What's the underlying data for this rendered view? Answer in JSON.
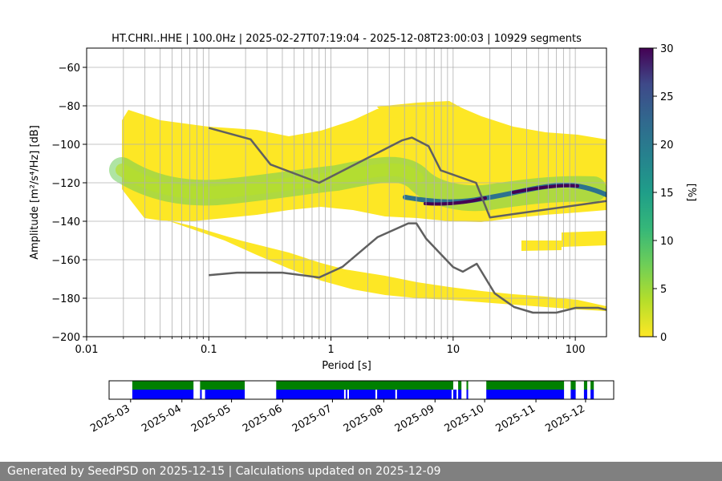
{
  "chart_data": [
    {
      "type": "heatmap",
      "title": "HT.CHRI..HHE | 100.0Hz | 2025-02-27T07:19:04 - 2025-12-08T23:00:03 | 10929 segments",
      "xlabel": "Period [s]",
      "ylabel": "Amplitude [m²/s⁴/Hz] [dB]",
      "x_scale": "log",
      "xlim": [
        0.01,
        180
      ],
      "ylim": [
        -200,
        -50
      ],
      "x_ticks": [
        0.01,
        0.1,
        1,
        10,
        100
      ],
      "x_tick_labels": [
        "0.01",
        "0.1",
        "1",
        "10",
        "100"
      ],
      "y_ticks": [
        -200,
        -180,
        -160,
        -140,
        -120,
        -100,
        -80,
        -60
      ],
      "y_tick_labels": [
        "−200",
        "−180",
        "−160",
        "−140",
        "−120",
        "−100",
        "−80",
        "−60"
      ],
      "grid": true,
      "colorbar": {
        "label": "[%]",
        "range": [
          0,
          30
        ],
        "ticks": [
          0,
          5,
          10,
          15,
          20,
          25,
          30
        ],
        "tick_labels": [
          "0",
          "5",
          "10",
          "15",
          "20",
          "25",
          "30"
        ],
        "colormap": "viridis_r"
      },
      "series": [
        {
          "name": "New High Noise Model",
          "color": "#606060",
          "points": [
            [
              0.1,
              -91.5
            ],
            [
              0.22,
              -97.4
            ],
            [
              0.32,
              -110.5
            ],
            [
              0.8,
              -120
            ],
            [
              3.8,
              -98
            ],
            [
              4.6,
              -96.5
            ],
            [
              6.3,
              -101
            ],
            [
              7.9,
              -113.5
            ],
            [
              15.4,
              -120
            ],
            [
              20,
              -138
            ],
            [
              180,
              -129.5
            ]
          ]
        },
        {
          "name": "New Low Noise Model",
          "color": "#606060",
          "points": [
            [
              0.1,
              -168
            ],
            [
              0.17,
              -166.7
            ],
            [
              0.4,
              -166.7
            ],
            [
              0.8,
              -169.2
            ],
            [
              1.24,
              -163.7
            ],
            [
              2.4,
              -148.3
            ],
            [
              4.3,
              -141.1
            ],
            [
              5,
              -141.1
            ],
            [
              6,
              -149
            ],
            [
              10,
              -163.8
            ],
            [
              12,
              -166.2
            ],
            [
              15.6,
              -162.1
            ],
            [
              21.9,
              -177.5
            ],
            [
              31.6,
              -184.6
            ],
            [
              45,
              -187.5
            ],
            [
              70,
              -187.5
            ],
            [
              101,
              -185
            ],
            [
              154,
              -185
            ],
            [
              180,
              -186
            ]
          ]
        }
      ],
      "density_ridges": [
        {
          "name": "main noise band",
          "points": [
            [
              0.02,
              -112
            ],
            [
              0.05,
              -123
            ],
            [
              0.1,
              -127
            ],
            [
              0.2,
              -125
            ],
            [
              0.5,
              -120
            ],
            [
              1,
              -116
            ],
            [
              2,
              -110
            ],
            [
              4,
              -120
            ],
            [
              6,
              -128
            ],
            [
              10,
              -131
            ],
            [
              20,
              -128
            ],
            [
              50,
              -124
            ],
            [
              80,
              -122
            ],
            [
              120,
              -125
            ],
            [
              180,
              -128
            ]
          ]
        }
      ]
    },
    {
      "type": "timeline",
      "name": "data availability",
      "x_tick_labels": [
        "2025-03",
        "2025-04",
        "2025-05",
        "2025-06",
        "2025-07",
        "2025-08",
        "2025-09",
        "2025-10",
        "2025-11",
        "2025-12"
      ],
      "series": [
        {
          "name": "data coverage",
          "color": "#008000",
          "segments": [
            [
              "2025-03-02",
              "2025-04-08"
            ],
            [
              "2025-04-12",
              "2025-05-09"
            ],
            [
              "2025-05-28",
              "2025-09-12"
            ],
            [
              "2025-09-15",
              "2025-09-17"
            ],
            [
              "2025-09-20",
              "2025-09-21"
            ],
            [
              "2025-10-02",
              "2025-11-18"
            ],
            [
              "2025-11-22",
              "2025-11-25"
            ],
            [
              "2025-11-30",
              "2025-12-02"
            ],
            [
              "2025-12-04",
              "2025-12-06"
            ]
          ]
        },
        {
          "name": "processed segments",
          "color": "#0000ff",
          "segments": [
            [
              "2025-03-02",
              "2025-04-08"
            ],
            [
              "2025-04-12",
              "2025-04-13"
            ],
            [
              "2025-04-15",
              "2025-05-09"
            ],
            [
              "2025-05-28",
              "2025-07-08"
            ],
            [
              "2025-07-09",
              "2025-07-10"
            ],
            [
              "2025-07-11",
              "2025-07-27"
            ],
            [
              "2025-07-28",
              "2025-08-08"
            ],
            [
              "2025-08-09",
              "2025-09-11"
            ],
            [
              "2025-09-12",
              "2025-09-14"
            ],
            [
              "2025-09-15",
              "2025-09-17"
            ],
            [
              "2025-09-20",
              "2025-09-21"
            ],
            [
              "2025-10-02",
              "2025-11-18"
            ],
            [
              "2025-11-22",
              "2025-11-25"
            ],
            [
              "2025-11-30",
              "2025-12-02"
            ],
            [
              "2025-12-04",
              "2025-12-06"
            ]
          ]
        }
      ]
    }
  ],
  "footer": {
    "text": "Generated by SeedPSD on 2025-12-15 | Calculations updated on 2025-12-09"
  }
}
